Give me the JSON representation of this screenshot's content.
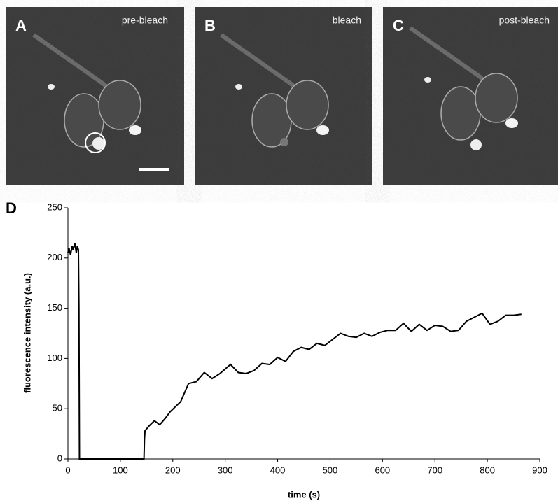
{
  "panels": [
    {
      "label": "A",
      "caption": "pre-bleach"
    },
    {
      "label": "B",
      "caption": "bleach"
    },
    {
      "label": "C",
      "caption": "post-bleach"
    }
  ],
  "chart_data": {
    "type": "line",
    "label": "D",
    "xlabel": "time (s)",
    "ylabel": "fluorescence intensity (a.u.)",
    "color": "#000000",
    "x": [
      0,
      2,
      5,
      8,
      10,
      13,
      16,
      18,
      20,
      21,
      22,
      25,
      145,
      146,
      147,
      155,
      165,
      175,
      185,
      195,
      205,
      215,
      230,
      245,
      260,
      275,
      290,
      310,
      325,
      340,
      355,
      370,
      385,
      400,
      415,
      430,
      445,
      460,
      475,
      490,
      505,
      520,
      535,
      550,
      565,
      580,
      595,
      610,
      625,
      640,
      655,
      670,
      685,
      700,
      715,
      730,
      745,
      760,
      775,
      790,
      805,
      820,
      835,
      850,
      865
    ],
    "values": [
      205,
      210,
      203,
      212,
      208,
      215,
      205,
      212,
      208,
      150,
      0,
      0,
      0,
      20,
      28,
      33,
      38,
      34,
      40,
      47,
      52,
      57,
      75,
      77,
      86,
      80,
      85,
      94,
      86,
      85,
      88,
      95,
      94,
      101,
      97,
      107,
      111,
      109,
      115,
      113,
      119,
      125,
      122,
      121,
      125,
      122,
      126,
      128,
      128,
      135,
      127,
      134,
      128,
      133,
      132,
      127,
      128,
      137,
      141,
      145,
      134,
      137,
      143,
      143,
      144
    ],
    "xlim": [
      0,
      900
    ],
    "xticks": [
      0,
      100,
      200,
      300,
      400,
      500,
      600,
      700,
      800,
      900
    ],
    "ylim": [
      0,
      250
    ],
    "yticks": [
      0,
      50,
      100,
      150,
      200,
      250
    ],
    "grid": false
  }
}
